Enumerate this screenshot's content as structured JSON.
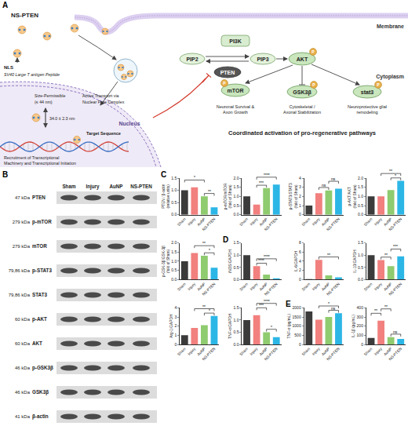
{
  "diagram": {
    "panel_label": "A",
    "nanoparticle_label": "NS-PTEN",
    "membrane": "Membrane",
    "cytoplasm": "Cytoplasm",
    "nucleus": "Nucleus",
    "nls": "NLS",
    "nls_peptide": "SV40 Large T antigen Peptide",
    "size_limit": [
      "Size-Permissible",
      "(≤ 44 nm)"
    ],
    "particle_size": "34.0 ± 2.3 nm",
    "transport": [
      "Active Transport via",
      "Nuclear Pore Complex"
    ],
    "target": "Target Sequence",
    "transcription": [
      "Recruitment of Transcriptional",
      "Machinery and Transcriptional Initiation"
    ],
    "nodes": {
      "pi3k": "PI3K",
      "pip2": "PIP2",
      "pip3": "PIP3",
      "pten": "PTEN",
      "akt": "AKT",
      "mtor": "mTOR",
      "gsk": "GSK3β",
      "stat": "stat3",
      "phospho": "P"
    },
    "outcomes": [
      [
        "Neuronal Survival &",
        "Axon Growth"
      ],
      [
        "Cytoskeletal /",
        "Axonal Stabilization"
      ],
      [
        "Neuroprotective glial",
        "remodeling"
      ]
    ],
    "summary": "Coordinated activation of pro-regenerative pathways"
  },
  "blot": {
    "panel_label": "B",
    "lanes": [
      "Sham",
      "Injury",
      "AuNP",
      "NS-PTEN"
    ],
    "rows": [
      {
        "kda": "47 kDa",
        "protein": "PTEN"
      },
      {
        "kda": "279 kDa",
        "protein": "p-mTOR"
      },
      {
        "kda": "279 kDa",
        "protein": "mTOR"
      },
      {
        "kda": "79,86 kDa",
        "protein": "p-STAT3"
      },
      {
        "kda": "79,86 kDa",
        "protein": "STAT3"
      },
      {
        "kda": "60 kDa",
        "protein": "p-AKT"
      },
      {
        "kda": "60 kDa",
        "protein": "AKT"
      },
      {
        "kda": "46 kDa",
        "protein": "p-GSK3β"
      },
      {
        "kda": "46 kDa",
        "protein": "GSK3β"
      },
      {
        "kda": "41 kDa",
        "protein": "β-actin"
      }
    ]
  },
  "chart_data": [
    {
      "panel": "C",
      "type": "bar",
      "y_label": [
        "PTEN / β-actin",
        "(relative units)"
      ],
      "categories": [
        "Sham",
        "Injury",
        "AuNP",
        "NS-PTEN"
      ],
      "values": [
        1.0,
        1.12,
        0.75,
        0.3
      ],
      "colors": [
        "#3b3b3b",
        "#f1807e",
        "#8fcb6f",
        "#2cb6e6"
      ],
      "ylim": [
        0,
        1.5
      ],
      "yticks": [
        {
          "value": 0,
          "label": "0.0"
        },
        {
          "value": 0.5,
          "label": "0.5"
        },
        {
          "value": 1,
          "label": "1.0"
        },
        {
          "value": 1.5,
          "label": "1.5"
        }
      ],
      "grid": false,
      "significance": [
        {
          "from": "AuNP",
          "to": "NS-PTEN",
          "label": "**"
        },
        {
          "from": "Sham",
          "to": "AuNP",
          "label": "*"
        }
      ]
    },
    {
      "type": "bar",
      "y_label": [
        "p-mTOR/mTOR",
        "(fold of Sham)"
      ],
      "categories": [
        "Sham",
        "Injury",
        "AuNP",
        "NS-PTEN"
      ],
      "values": [
        1.0,
        0.55,
        1.45,
        1.65
      ],
      "colors": [
        "#3b3b3b",
        "#f1807e",
        "#8fcb6f",
        "#2cb6e6"
      ],
      "ylim": [
        0,
        2
      ],
      "yticks": [
        {
          "value": 0,
          "label": "0.0"
        },
        {
          "value": 0.5,
          "label": "0.5"
        },
        {
          "value": 1,
          "label": "1.0"
        },
        {
          "value": 1.5,
          "label": "1.5"
        },
        {
          "value": 2,
          "label": "2.0"
        }
      ],
      "grid": false,
      "significance": [
        {
          "from": "Injury",
          "to": "AuNP",
          "label": "***"
        },
        {
          "from": "Injury",
          "to": "NS-PTEN",
          "label": "****"
        }
      ]
    },
    {
      "type": "bar",
      "y_label": [
        "p-STAT3/STAT3",
        "(fold of Sham)"
      ],
      "categories": [
        "Sham",
        "Injury",
        "AuNP",
        "NS-PTEN"
      ],
      "values": [
        1.0,
        2.35,
        2.65,
        2.85
      ],
      "colors": [
        "#3b3b3b",
        "#f1807e",
        "#8fcb6f",
        "#2cb6e6"
      ],
      "ylim": [
        0,
        4
      ],
      "yticks": [
        0,
        1,
        2,
        3,
        4
      ],
      "grid": false,
      "significance": [
        {
          "from": "Injury",
          "to": "AuNP",
          "label": "ns"
        },
        {
          "from": "AuNP",
          "to": "NS-PTEN",
          "label": "ns"
        }
      ]
    },
    {
      "type": "bar",
      "y_label": [
        "p-AKT/AKT",
        "(fold of Sham)"
      ],
      "categories": [
        "Sham",
        "Injury",
        "AuNP",
        "NS-PTEN"
      ],
      "values": [
        1.0,
        1.0,
        1.35,
        1.85
      ],
      "colors": [
        "#3b3b3b",
        "#f1807e",
        "#8fcb6f",
        "#2cb6e6"
      ],
      "ylim": [
        0,
        2
      ],
      "yticks": [
        {
          "value": 0,
          "label": "0.0"
        },
        {
          "value": 0.5,
          "label": "0.5"
        },
        {
          "value": 1,
          "label": "1.0"
        },
        {
          "value": 1.5,
          "label": "1.5"
        },
        {
          "value": 2,
          "label": "2.0"
        }
      ],
      "grid": false,
      "significance": [
        {
          "from": "AuNP",
          "to": "NS-PTEN",
          "label": "*"
        },
        {
          "from": "Injury",
          "to": "NS-PTEN",
          "label": "**"
        }
      ]
    },
    {
      "type": "bar",
      "y_label": [
        "p-GSK-3β/GSK-3β",
        "(fold of Sham)"
      ],
      "categories": [
        "Sham",
        "Injury",
        "AuNP",
        "NS-PTEN"
      ],
      "values": [
        1.0,
        1.45,
        1.3,
        0.65
      ],
      "colors": [
        "#3b3b3b",
        "#f1807e",
        "#8fcb6f",
        "#2cb6e6"
      ],
      "ylim": [
        0,
        2
      ],
      "yticks": [
        {
          "value": 0,
          "label": "0.0"
        },
        {
          "value": 0.5,
          "label": "0.5"
        },
        {
          "value": 1,
          "label": "1.0"
        },
        {
          "value": 1.5,
          "label": "1.5"
        },
        {
          "value": 2,
          "label": "2.0"
        }
      ],
      "grid": false,
      "significance": [
        {
          "from": "AuNP",
          "to": "NS-PTEN",
          "label": "*"
        },
        {
          "from": "Injury",
          "to": "NS-PTEN",
          "label": "**"
        }
      ]
    },
    {
      "panel": "D",
      "type": "bar",
      "y_label": [
        "iNOS/GAPDH"
      ],
      "categories": [
        "Sham",
        "Injury",
        "AuNP",
        "NS-PTEN"
      ],
      "values": [
        1.0,
        0.55,
        0.2,
        0.05
      ],
      "colors": [
        "#3b3b3b",
        "#f1807e",
        "#8fcb6f",
        "#2cb6e6"
      ],
      "ylim": [
        0,
        1.5
      ],
      "yticks": [
        {
          "value": 0,
          "label": "0.0"
        },
        {
          "value": 0.5,
          "label": "0.5"
        },
        {
          "value": 1,
          "label": "1.0"
        },
        {
          "value": 1.5,
          "label": "1.5"
        }
      ],
      "grid": false,
      "significance": [
        {
          "from": "Injury",
          "to": "AuNP",
          "label": "****"
        },
        {
          "from": "Injury",
          "to": "NS-PTEN",
          "label": "****"
        }
      ]
    },
    {
      "type": "bar",
      "y_label": [
        "IL-6/GAPDH"
      ],
      "categories": [
        "Sham",
        "Injury",
        "AuNP",
        "NS-PTEN"
      ],
      "values": [
        0.1,
        4.3,
        0.9,
        0.5
      ],
      "colors": [
        "#3b3b3b",
        "#f1807e",
        "#8fcb6f",
        "#2cb6e6"
      ],
      "ylim": [
        0,
        8
      ],
      "yticks": [
        0,
        2,
        4,
        6,
        8
      ],
      "grid": false,
      "significance": [
        {
          "from": "Injury",
          "to": "NS-PTEN",
          "label": "**"
        }
      ]
    },
    {
      "type": "bar",
      "y_label": [
        "IL-10/GAPDH"
      ],
      "categories": [
        "Sham",
        "Injury",
        "AuNP",
        "NS-PTEN"
      ],
      "values": [
        1.0,
        0.8,
        0.55,
        0.95
      ],
      "colors": [
        "#3b3b3b",
        "#f1807e",
        "#8fcb6f",
        "#2cb6e6"
      ],
      "ylim": [
        0,
        1.5
      ],
      "yticks": [
        {
          "value": 0,
          "label": "0.0"
        },
        {
          "value": 0.5,
          "label": "0.5"
        },
        {
          "value": 1,
          "label": "1.0"
        },
        {
          "value": 1.5,
          "label": "1.5"
        }
      ],
      "grid": false,
      "significance": [
        {
          "from": "Injury",
          "to": "AuNP",
          "label": "**"
        },
        {
          "from": "AuNP",
          "to": "NS-PTEN",
          "label": "***"
        }
      ]
    },
    {
      "type": "bar",
      "y_label": [
        "Arg-1/GAPDH"
      ],
      "categories": [
        "Sham",
        "Injury",
        "AuNP",
        "NS-PTEN"
      ],
      "values": [
        1.0,
        1.8,
        2.1,
        3.1
      ],
      "colors": [
        "#3b3b3b",
        "#f1807e",
        "#8fcb6f",
        "#2cb6e6"
      ],
      "ylim": [
        0,
        4
      ],
      "yticks": [
        0,
        1,
        2,
        3,
        4
      ],
      "grid": false,
      "significance": [
        {
          "from": "AuNP",
          "to": "NS-PTEN",
          "label": "*"
        },
        {
          "from": "Injury",
          "to": "NS-PTEN",
          "label": "**"
        }
      ]
    },
    {
      "type": "bar",
      "y_label": [
        "TNF-α/GAPDH"
      ],
      "categories": [
        "Sham",
        "Injury",
        "AuNP",
        "NS-PTEN"
      ],
      "values": [
        1.0,
        1.2,
        0.5,
        0.3
      ],
      "colors": [
        "#3b3b3b",
        "#f1807e",
        "#8fcb6f",
        "#2cb6e6"
      ],
      "ylim": [
        0,
        1.5
      ],
      "yticks": [
        {
          "value": 0,
          "label": "0.0"
        },
        {
          "value": 0.5,
          "label": "0.5"
        },
        {
          "value": 1,
          "label": "1.0"
        },
        {
          "value": 1.5,
          "label": "1.5"
        }
      ],
      "grid": false,
      "significance": [
        {
          "from": "AuNP",
          "to": "NS-PTEN",
          "label": "*"
        },
        {
          "from": "Injury",
          "to": "AuNP",
          "label": "***"
        },
        {
          "from": "Injury",
          "to": "NS-PTEN",
          "label": "****"
        }
      ]
    },
    {
      "panel": "E",
      "type": "bar",
      "y_label": [
        "TNF-α (pg/mL)"
      ],
      "categories": [
        "Sham",
        "Injury",
        "AuNP",
        "NS-PTEN"
      ],
      "values": [
        1800,
        1350,
        1500,
        1700
      ],
      "colors": [
        "#3b3b3b",
        "#f1807e",
        "#8fcb6f",
        "#2cb6e6"
      ],
      "ylim": [
        0,
        2000
      ],
      "yticks": [
        0,
        500,
        1000,
        1500,
        2000
      ],
      "grid": false,
      "significance": [
        {
          "from": "AuNP",
          "to": "NS-PTEN",
          "label": "ns"
        },
        {
          "from": "Injury",
          "to": "NS-PTEN",
          "label": "*"
        }
      ]
    },
    {
      "type": "bar",
      "y_label": [
        "IL-1β (pg/mL)"
      ],
      "categories": [
        "Sham",
        "Injury",
        "AuNP",
        "NS-PTEN"
      ],
      "values": [
        70,
        260,
        80,
        60
      ],
      "colors": [
        "#3b3b3b",
        "#f1807e",
        "#8fcb6f",
        "#2cb6e6"
      ],
      "ylim": [
        0,
        400
      ],
      "yticks": [
        0,
        100,
        200,
        300,
        400
      ],
      "grid": false,
      "significance": [
        {
          "from": "AuNP",
          "to": "NS-PTEN",
          "label": "ns"
        },
        {
          "from": "Sham",
          "to": "Injury",
          "label": "**"
        },
        {
          "from": "Injury",
          "to": "AuNP",
          "label": "**"
        }
      ]
    }
  ]
}
